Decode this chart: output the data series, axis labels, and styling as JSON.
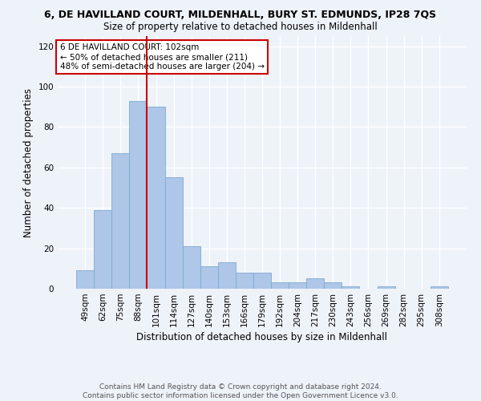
{
  "title": "6, DE HAVILLAND COURT, MILDENHALL, BURY ST. EDMUNDS, IP28 7QS",
  "subtitle": "Size of property relative to detached houses in Mildenhall",
  "xlabel": "Distribution of detached houses by size in Mildenhall",
  "ylabel": "Number of detached properties",
  "categories": [
    "49sqm",
    "62sqm",
    "75sqm",
    "88sqm",
    "101sqm",
    "114sqm",
    "127sqm",
    "140sqm",
    "153sqm",
    "166sqm",
    "179sqm",
    "192sqm",
    "204sqm",
    "217sqm",
    "230sqm",
    "243sqm",
    "256sqm",
    "269sqm",
    "282sqm",
    "295sqm",
    "308sqm"
  ],
  "values": [
    9,
    39,
    67,
    93,
    90,
    55,
    21,
    11,
    13,
    8,
    8,
    3,
    3,
    5,
    3,
    1,
    0,
    1,
    0,
    0,
    1
  ],
  "bar_color": "#aec6e8",
  "bar_edge_color": "#7aabcf",
  "highlight_index": 4,
  "highlight_color": "#cc0000",
  "ylim": [
    0,
    125
  ],
  "yticks": [
    0,
    20,
    40,
    60,
    80,
    100,
    120
  ],
  "annotation_text": "6 DE HAVILLAND COURT: 102sqm\n← 50% of detached houses are smaller (211)\n48% of semi-detached houses are larger (204) →",
  "annotation_box_color": "#ffffff",
  "annotation_box_edge_color": "#cc0000",
  "footer_text": "Contains HM Land Registry data © Crown copyright and database right 2024.\nContains public sector information licensed under the Open Government Licence v3.0.",
  "background_color": "#eef2f9",
  "grid_color": "#ffffff",
  "title_fontsize": 9,
  "subtitle_fontsize": 8.5,
  "tick_fontsize": 7.5,
  "ylabel_fontsize": 8.5,
  "xlabel_fontsize": 8.5
}
